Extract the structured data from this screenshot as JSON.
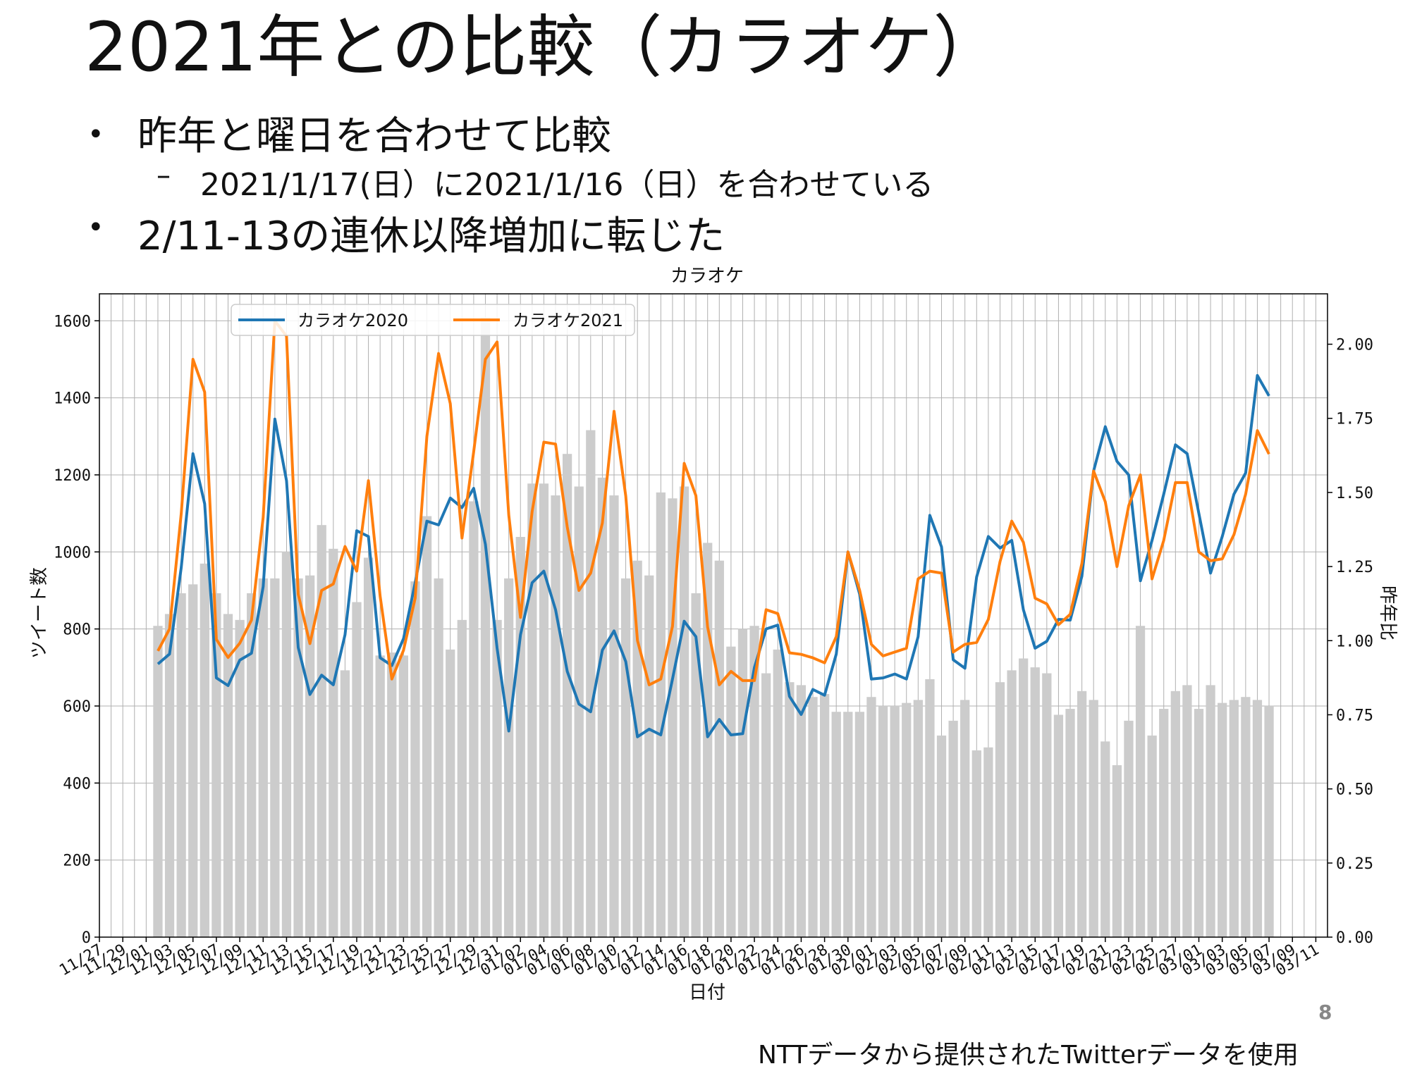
{
  "slide": {
    "title": "2021年との比較（カラオケ）",
    "bullets": [
      {
        "level": 1,
        "text": "昨年と曜日を合わせて比較"
      },
      {
        "level": 2,
        "text": "2021/1/17(日）に2021/1/16（日）を合わせている"
      },
      {
        "level": 1,
        "text": "2/11-13の連休以降増加に転じた"
      }
    ],
    "page_number": "8",
    "source": "NTTデータから提供されたTwitterデータを使用"
  },
  "colors": {
    "series2020": "#1f77b4",
    "series2021": "#ff7f0e",
    "bars": "#cccccc",
    "grid": "#b0b0b0"
  },
  "chart_data": {
    "type": "bar+line",
    "title": "カラオケ",
    "xlabel": "日付",
    "ylabel_left": "ツイート数",
    "ylabel_right": "昨年比",
    "ylim_left": [
      0,
      1670
    ],
    "ylim_right": [
      0,
      2.17
    ],
    "yticks_left": [
      0,
      200,
      400,
      600,
      800,
      1000,
      1200,
      1400,
      1600
    ],
    "yticks_right": [
      "0.00",
      "0.25",
      "0.50",
      "0.75",
      "1.00",
      "1.25",
      "1.50",
      "1.75",
      "2.00"
    ],
    "grid": true,
    "legend_position": "top-left",
    "x_start_date": "2020-11-27",
    "x_end_date": "2021-03-12",
    "x_tick_labels": [
      "11/27",
      "11/29",
      "12/01",
      "12/03",
      "12/05",
      "12/07",
      "12/09",
      "12/11",
      "12/13",
      "12/15",
      "12/17",
      "12/19",
      "12/21",
      "12/23",
      "12/25",
      "12/27",
      "12/29",
      "12/31",
      "01/02",
      "01/04",
      "01/06",
      "01/08",
      "01/10",
      "01/12",
      "01/14",
      "01/16",
      "01/18",
      "01/20",
      "01/22",
      "01/24",
      "01/26",
      "01/28",
      "01/30",
      "02/01",
      "02/03",
      "02/05",
      "02/07",
      "02/09",
      "02/11",
      "02/13",
      "02/15",
      "02/17",
      "02/19",
      "02/21",
      "02/23",
      "02/25",
      "02/27",
      "03/01",
      "03/03",
      "03/05",
      "03/07",
      "03/09",
      "03/11"
    ],
    "data_start_date": "2020-12-02",
    "bar_series": {
      "name": "昨年比",
      "axis": "right",
      "values": [
        1.05,
        1.09,
        1.16,
        1.19,
        1.26,
        1.16,
        1.09,
        1.07,
        1.16,
        1.21,
        1.21,
        1.3,
        1.21,
        1.22,
        1.39,
        1.31,
        0.9,
        1.13,
        1.28,
        0.95,
        0.96,
        0.95,
        1.2,
        1.42,
        1.21,
        0.97,
        1.07,
        1.47,
        2.09,
        1.07,
        1.21,
        1.35,
        1.53,
        1.53,
        1.49,
        1.63,
        1.52,
        1.71,
        1.55,
        1.49,
        1.21,
        1.27,
        1.22,
        1.5,
        1.48,
        1.52,
        1.16,
        1.33,
        1.27,
        0.98,
        1.04,
        1.05,
        0.89,
        0.97,
        0.86,
        0.85,
        0.81,
        0.82,
        0.76,
        0.76,
        0.76,
        0.81,
        0.78,
        0.78,
        0.79,
        0.8,
        0.87,
        0.68,
        0.73,
        0.8,
        0.63,
        0.64,
        0.86,
        0.9,
        0.94,
        0.91,
        0.89,
        0.75,
        0.77,
        0.83,
        0.8,
        0.66,
        0.58,
        0.73,
        1.05,
        0.68,
        0.77,
        0.83,
        0.85,
        0.77,
        0.85,
        0.79,
        0.8,
        0.81,
        0.8,
        0.78
      ]
    },
    "series": [
      {
        "name": "カラオケ2020",
        "axis": "left",
        "values": [
          709,
          735,
          960,
          1255,
          1125,
          673,
          653,
          719,
          737,
          910,
          1345,
          1185,
          752,
          630,
          680,
          655,
          785,
          1055,
          1040,
          725,
          705,
          775,
          920,
          1080,
          1070,
          1140,
          1115,
          1165,
          1020,
          750,
          535,
          785,
          920,
          950,
          850,
          690,
          605,
          585,
          745,
          795,
          715,
          520,
          540,
          525,
          670,
          820,
          780,
          520,
          565,
          525,
          528,
          700,
          800,
          810,
          625,
          578,
          643,
          628,
          735,
          1000,
          890,
          670,
          673,
          683,
          670,
          780,
          1095,
          1013,
          720,
          698,
          935,
          1040,
          1010,
          1030,
          850,
          750,
          768,
          825,
          823,
          937,
          1210,
          1325,
          1235,
          1200,
          925,
          1030,
          1150,
          1278,
          1255,
          1100,
          945,
          1040,
          1150,
          1205,
          1458,
          1405
        ]
      },
      {
        "name": "カラオケ2021",
        "axis": "left",
        "values": [
          743,
          800,
          1100,
          1500,
          1415,
          773,
          726,
          763,
          823,
          1090,
          1600,
          1560,
          890,
          762,
          900,
          917,
          1014,
          950,
          1185,
          885,
          670,
          745,
          880,
          1300,
          1515,
          1385,
          1036,
          1260,
          1500,
          1545,
          1095,
          830,
          1105,
          1285,
          1280,
          1065,
          900,
          945,
          1075,
          1365,
          1145,
          770,
          655,
          670,
          807,
          1230,
          1146,
          805,
          655,
          690,
          666,
          666,
          850,
          840,
          738,
          734,
          725,
          712,
          780,
          1000,
          900,
          760,
          730,
          740,
          750,
          930,
          950,
          945,
          740,
          760,
          765,
          825,
          975,
          1080,
          1025,
          880,
          865,
          811,
          838,
          970,
          1210,
          1130,
          962,
          1120,
          1200,
          930,
          1030,
          1180,
          1180,
          1000,
          977,
          982,
          1045,
          1150,
          1315,
          1254
        ]
      }
    ]
  }
}
